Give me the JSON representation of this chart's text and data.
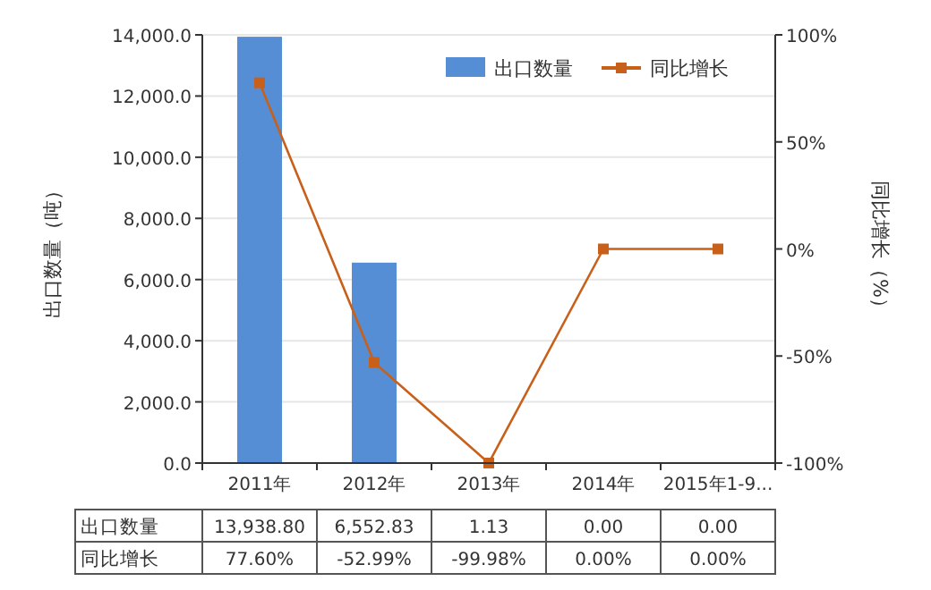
{
  "chart_data": {
    "type": "bar",
    "ylabel": "出口数量（吨）",
    "y2label": "同比增长（%）",
    "categories": [
      "2011年",
      "2012年",
      "2013年",
      "2014年",
      "2015年1-9..."
    ],
    "series": [
      {
        "name": "出口数量",
        "color": "#558ed5",
        "values": [
          13938.8,
          6552.83,
          1.13,
          0.0,
          0.0
        ],
        "value_labels": [
          "13,938.80",
          "6,552.83",
          "1.13",
          "0.00",
          "0.00"
        ]
      },
      {
        "name": "同比增长",
        "type": "line",
        "axis": "y2",
        "color": "#c8601a",
        "marker": "square",
        "values": [
          77.6,
          -52.99,
          -99.98,
          0.0,
          0.0
        ],
        "value_labels": [
          "77.60%",
          "-52.99%",
          "-99.98%",
          "0.00%",
          "0.00%"
        ]
      }
    ],
    "ylim": [
      0,
      14000
    ],
    "yticks": [
      {
        "value": 0,
        "label": "0.0"
      },
      {
        "value": 2000,
        "label": "2,000.0"
      },
      {
        "value": 4000,
        "label": "4,000.0"
      },
      {
        "value": 6000,
        "label": "6,000.0"
      },
      {
        "value": 8000,
        "label": "8,000.0"
      },
      {
        "value": 10000,
        "label": "10,000.0"
      },
      {
        "value": 12000,
        "label": "12,000.0"
      },
      {
        "value": 14000,
        "label": "14,000.0"
      }
    ],
    "y2lim": [
      -100,
      100
    ],
    "y2ticks": [
      {
        "value": -100,
        "label": "-100%"
      },
      {
        "value": -50,
        "label": "-50%"
      },
      {
        "value": 0,
        "label": "0%"
      },
      {
        "value": 50,
        "label": "50%"
      },
      {
        "value": 100,
        "label": "100%"
      }
    ],
    "grid": "y",
    "legend": "top right"
  }
}
